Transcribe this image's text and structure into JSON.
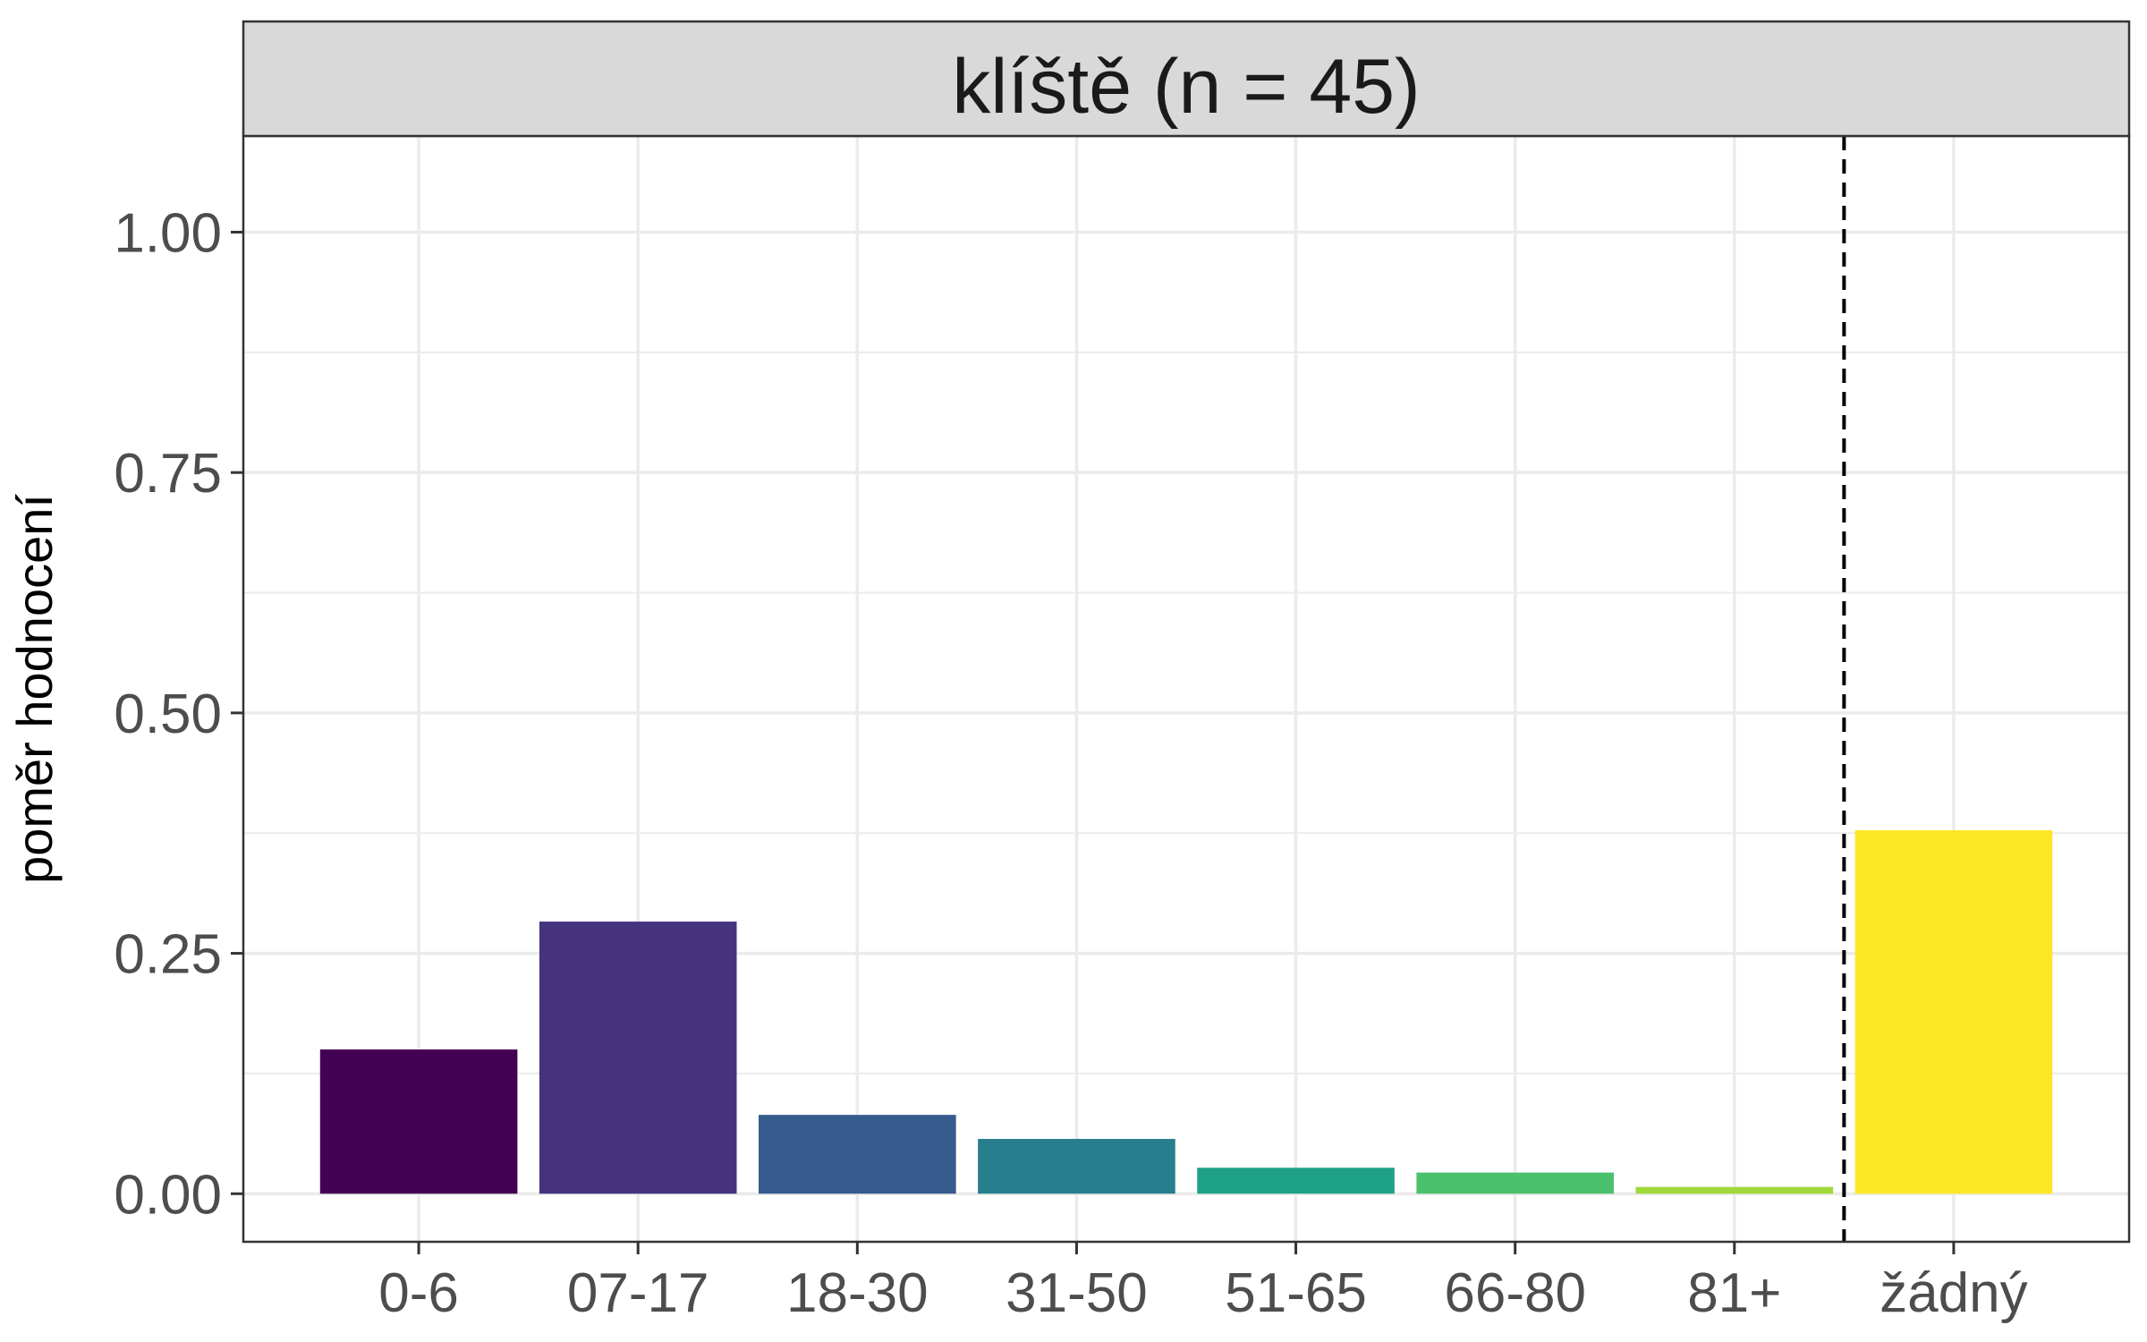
{
  "chart_data": {
    "type": "bar",
    "title": "klíště (n = 45)",
    "xlabel": "",
    "ylabel": "poměr hodnocení",
    "categories": [
      "0-6",
      "07-17",
      "18-30",
      "31-50",
      "51-65",
      "66-80",
      "81+",
      "žádný"
    ],
    "values": [
      0.15,
      0.283,
      0.082,
      0.057,
      0.027,
      0.022,
      0.007,
      0.378
    ],
    "colors": [
      "#440154",
      "#46337E",
      "#365C8D",
      "#277F8E",
      "#1FA187",
      "#4AC16D",
      "#9FDA3A",
      "#FDE725"
    ],
    "ylim": [
      -0.05,
      1.1
    ],
    "y_ticks": [
      "0.00",
      "0.25",
      "0.50",
      "0.75",
      "1.00"
    ],
    "grid": true,
    "legend": "none",
    "reference_line": {
      "style": "dashed",
      "between": [
        "81+",
        "žádný"
      ]
    }
  }
}
